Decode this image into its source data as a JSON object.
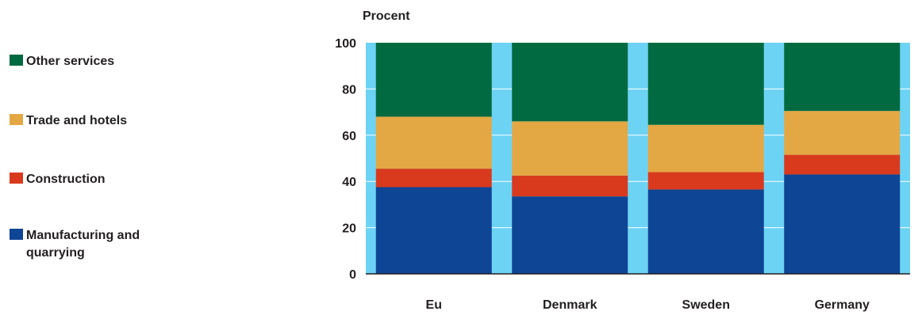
{
  "chart_data": {
    "type": "bar",
    "stacked": true,
    "unit_label": "Procent",
    "categories": [
      "Eu",
      "Denmark",
      "Sweden",
      "Germany"
    ],
    "yticks": [
      "0",
      "20",
      "40",
      "60",
      "80",
      "100"
    ],
    "ylim": [
      0,
      100
    ],
    "grid": true,
    "series": [
      {
        "name": "Manufacturing and quarrying",
        "color": "#0e4595",
        "values": [
          37.5,
          33.5,
          36.5,
          43
        ]
      },
      {
        "name": "Construction",
        "color": "#d93a1e",
        "values": [
          8,
          9,
          7.5,
          8.5
        ]
      },
      {
        "name": "Trade and hotels",
        "color": "#e3a843",
        "values": [
          22.5,
          23.5,
          20.5,
          19
        ]
      },
      {
        "name": "Other services",
        "color": "#016a40",
        "values": [
          32,
          34,
          35.5,
          29.5
        ]
      }
    ],
    "background_color": "#6dd3f5",
    "legend_position": "left"
  }
}
